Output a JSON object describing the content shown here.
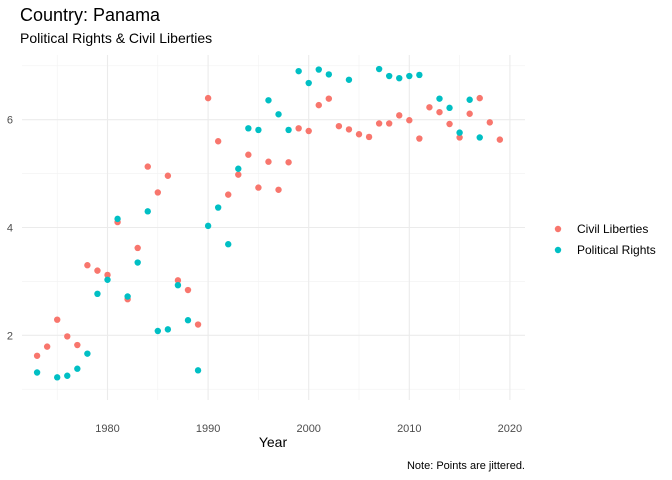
{
  "chart_data": {
    "type": "scatter",
    "title": "Country: Panama",
    "subtitle": "Political Rights & Civil Liberties",
    "xlabel": "Year",
    "ylabel": "",
    "caption": "Note: Points are jittered.",
    "xlim": [
      1971.5,
      2021.5
    ],
    "ylim": [
      0.8,
      7.2
    ],
    "x_ticks": [
      1980,
      1990,
      2000,
      2010,
      2020
    ],
    "y_ticks": [
      2,
      4,
      6
    ],
    "grid": true,
    "legend_position": "right",
    "series": [
      {
        "name": "Civil Liberties",
        "color": "#f8766d",
        "points": [
          [
            1973,
            1.62
          ],
          [
            1974,
            1.79
          ],
          [
            1975,
            2.29
          ],
          [
            1976,
            1.98
          ],
          [
            1977,
            1.82
          ],
          [
            1978,
            3.3
          ],
          [
            1979,
            3.2
          ],
          [
            1980,
            3.12
          ],
          [
            1981,
            4.1
          ],
          [
            1982,
            2.67
          ],
          [
            1983,
            3.62
          ],
          [
            1984,
            5.13
          ],
          [
            1985,
            4.65
          ],
          [
            1986,
            4.96
          ],
          [
            1987,
            3.02
          ],
          [
            1988,
            2.84
          ],
          [
            1989,
            2.2
          ],
          [
            1990,
            6.4
          ],
          [
            1991,
            5.6
          ],
          [
            1992,
            4.61
          ],
          [
            1993,
            4.98
          ],
          [
            1994,
            5.35
          ],
          [
            1995,
            4.74
          ],
          [
            1996,
            5.22
          ],
          [
            1997,
            4.7
          ],
          [
            1998,
            5.21
          ],
          [
            1999,
            5.84
          ],
          [
            2000,
            5.79
          ],
          [
            2001,
            6.27
          ],
          [
            2002,
            6.39
          ],
          [
            2003,
            5.88
          ],
          [
            2004,
            5.82
          ],
          [
            2005,
            5.73
          ],
          [
            2006,
            5.68
          ],
          [
            2007,
            5.93
          ],
          [
            2008,
            5.93
          ],
          [
            2009,
            6.08
          ],
          [
            2010,
            5.99
          ],
          [
            2011,
            5.65
          ],
          [
            2012,
            6.23
          ],
          [
            2013,
            6.14
          ],
          [
            2014,
            5.92
          ],
          [
            2015,
            5.67
          ],
          [
            2016,
            6.11
          ],
          [
            2017,
            6.4
          ],
          [
            2018,
            5.95
          ],
          [
            2019,
            5.63
          ]
        ]
      },
      {
        "name": "Political Rights",
        "color": "#00bfc4",
        "points": [
          [
            1973,
            1.31
          ],
          [
            1975,
            1.22
          ],
          [
            1976,
            1.25
          ],
          [
            1977,
            1.38
          ],
          [
            1978,
            1.66
          ],
          [
            1979,
            2.77
          ],
          [
            1980,
            3.03
          ],
          [
            1981,
            4.16
          ],
          [
            1982,
            2.72
          ],
          [
            1983,
            3.35
          ],
          [
            1984,
            4.3
          ],
          [
            1985,
            2.08
          ],
          [
            1986,
            2.11
          ],
          [
            1987,
            2.93
          ],
          [
            1988,
            2.28
          ],
          [
            1989,
            1.35
          ],
          [
            1990,
            4.03
          ],
          [
            1991,
            4.37
          ],
          [
            1992,
            3.69
          ],
          [
            1993,
            5.09
          ],
          [
            1994,
            5.84
          ],
          [
            1995,
            5.81
          ],
          [
            1996,
            6.36
          ],
          [
            1997,
            6.1
          ],
          [
            1998,
            5.81
          ],
          [
            1999,
            6.9
          ],
          [
            2000,
            6.68
          ],
          [
            2001,
            6.93
          ],
          [
            2002,
            6.84
          ],
          [
            2004,
            6.74
          ],
          [
            2007,
            6.94
          ],
          [
            2008,
            6.81
          ],
          [
            2009,
            6.77
          ],
          [
            2010,
            6.81
          ],
          [
            2011,
            6.83
          ],
          [
            2013,
            6.39
          ],
          [
            2014,
            6.22
          ],
          [
            2015,
            5.76
          ],
          [
            2016,
            6.37
          ],
          [
            2017,
            5.67
          ]
        ]
      }
    ]
  }
}
